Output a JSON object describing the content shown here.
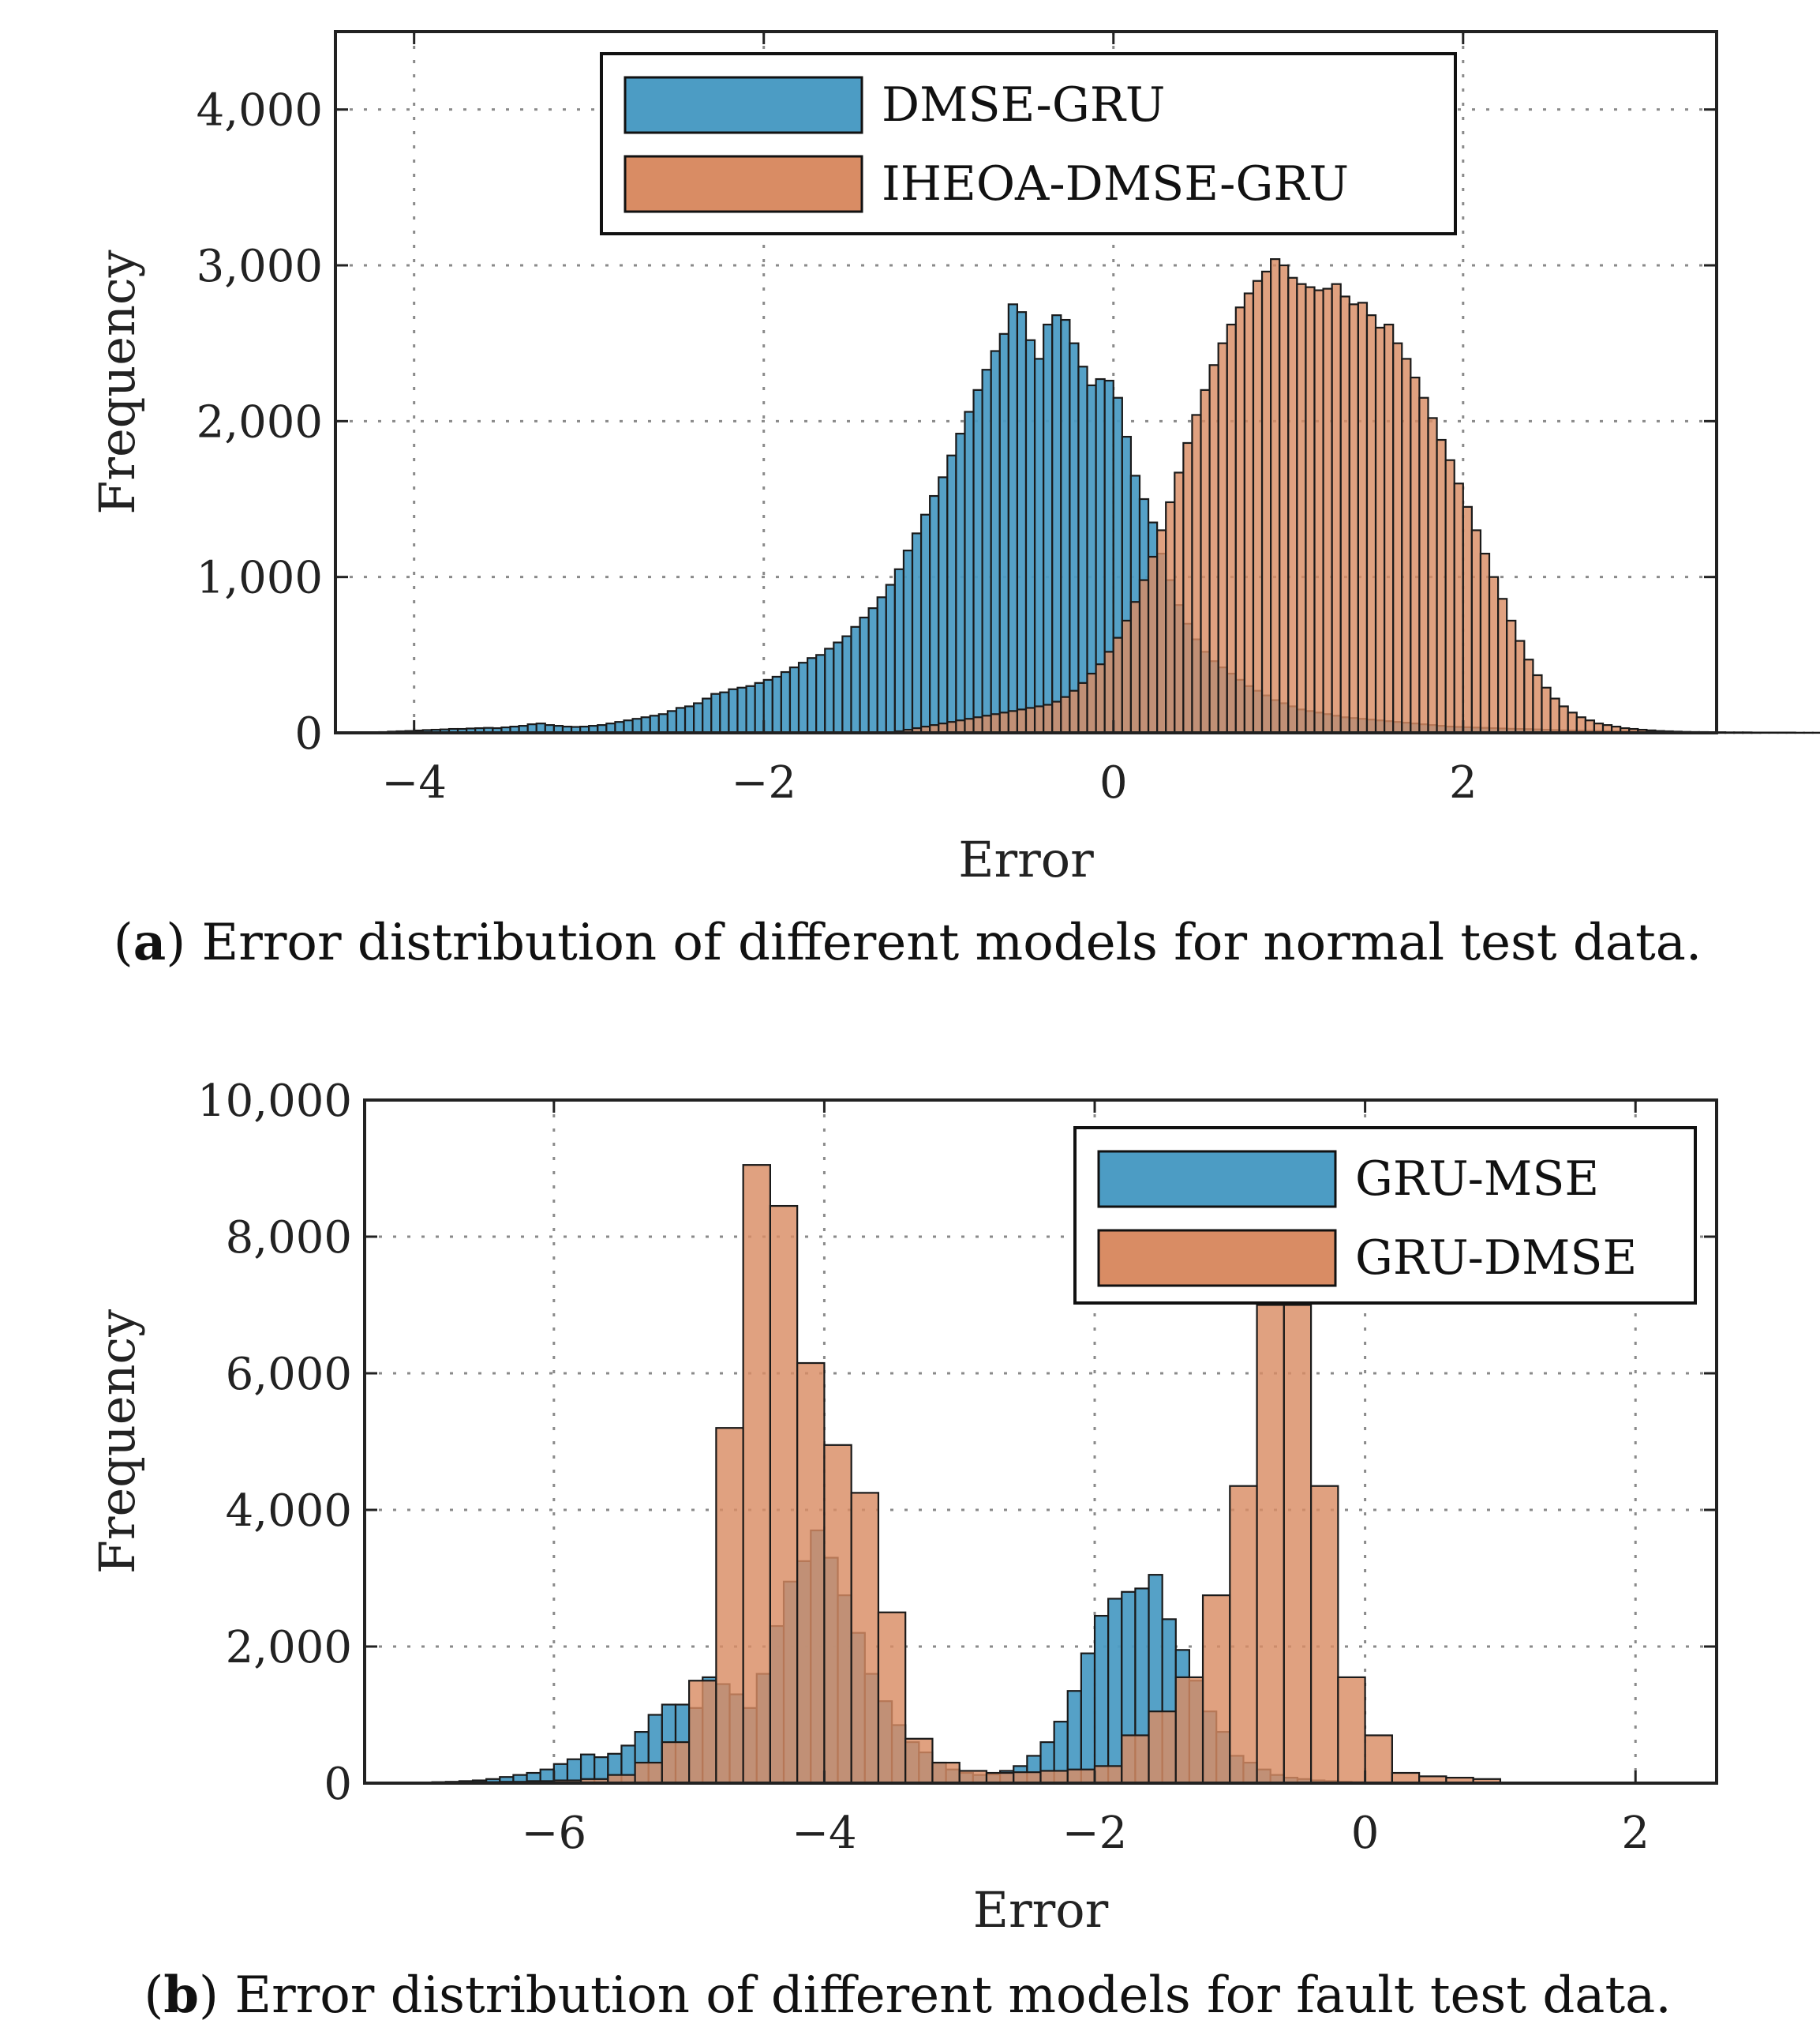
{
  "chart_data": [
    {
      "id": "a",
      "type": "bar",
      "subtype": "histogram",
      "title": "",
      "xlabel": "Error",
      "ylabel": "Frequency",
      "xlim": [
        -4.45,
        3.45
      ],
      "ylim": [
        0,
        4500
      ],
      "grid": true,
      "legend_position": "top-center",
      "xticks": [
        -4,
        -2,
        0,
        2
      ],
      "xtick_labels": [
        "−4",
        "−2",
        "0",
        "2"
      ],
      "yticks": [
        0,
        1000,
        2000,
        3000,
        4000
      ],
      "ytick_labels": [
        "0",
        "1,000",
        "2,000",
        "3,000",
        "4,000"
      ],
      "caption_label": "a",
      "caption_text": " Error distribution of different models for normal test data.",
      "series": [
        {
          "name": "DMSE-GRU",
          "color": "#4c9cc4",
          "bin_start": -4.2,
          "bin_width": 0.05,
          "values": [
            5,
            8,
            10,
            12,
            15,
            18,
            20,
            22,
            25,
            25,
            28,
            30,
            32,
            30,
            35,
            40,
            45,
            55,
            60,
            50,
            45,
            40,
            38,
            40,
            45,
            50,
            60,
            70,
            80,
            90,
            100,
            110,
            120,
            140,
            160,
            170,
            190,
            220,
            250,
            260,
            280,
            290,
            300,
            320,
            340,
            360,
            390,
            420,
            450,
            480,
            500,
            540,
            580,
            620,
            680,
            740,
            800,
            870,
            950,
            1050,
            1170,
            1280,
            1400,
            1520,
            1640,
            1780,
            1920,
            2060,
            2200,
            2330,
            2450,
            2560,
            2750,
            2700,
            2520,
            2400,
            2620,
            2680,
            2650,
            2500,
            2350,
            2230,
            2270,
            2260,
            2150,
            1900,
            1650,
            1500,
            1350,
            1150,
            980,
            820,
            700,
            600,
            520,
            460,
            420,
            380,
            340,
            300,
            270,
            240,
            210,
            190,
            170,
            150,
            140,
            130,
            120,
            110,
            100,
            95,
            90,
            85,
            80,
            75,
            70,
            65,
            60,
            55,
            50,
            45,
            40,
            38,
            36,
            34,
            32,
            30,
            28,
            26,
            25,
            24,
            22,
            20,
            18,
            16,
            15,
            14,
            13,
            12,
            11,
            10,
            10,
            9,
            8,
            8,
            7,
            6,
            6,
            5,
            5,
            5,
            4,
            4,
            3,
            3,
            3,
            2,
            2,
            2,
            2,
            2,
            1,
            1,
            1,
            1,
            1,
            1,
            1,
            1
          ]
        },
        {
          "name": "IHEOA-DMSE-GRU",
          "color": "#d98c64",
          "bin_start": -4.2,
          "bin_width": 0.05,
          "values": [
            0,
            0,
            0,
            0,
            0,
            0,
            0,
            0,
            0,
            0,
            0,
            0,
            0,
            0,
            0,
            0,
            0,
            0,
            0,
            0,
            0,
            0,
            0,
            0,
            0,
            0,
            0,
            0,
            0,
            0,
            0,
            0,
            0,
            0,
            0,
            0,
            0,
            0,
            0,
            0,
            0,
            0,
            0,
            0,
            0,
            0,
            0,
            0,
            0,
            0,
            0,
            0,
            0,
            0,
            0,
            0,
            0,
            0,
            0,
            10,
            20,
            30,
            40,
            50,
            60,
            70,
            80,
            90,
            100,
            110,
            120,
            130,
            140,
            150,
            160,
            170,
            180,
            200,
            230,
            270,
            320,
            380,
            440,
            520,
            610,
            720,
            840,
            980,
            1130,
            1300,
            1480,
            1670,
            1860,
            2040,
            2200,
            2360,
            2500,
            2620,
            2730,
            2820,
            2900,
            2960,
            3040,
            3000,
            2920,
            2880,
            2860,
            2840,
            2850,
            2880,
            2800,
            2750,
            2760,
            2680,
            2600,
            2620,
            2500,
            2400,
            2280,
            2150,
            2020,
            1880,
            1750,
            1600,
            1450,
            1300,
            1150,
            1000,
            860,
            720,
            590,
            470,
            370,
            290,
            220,
            170,
            130,
            100,
            80,
            60,
            50,
            40,
            30,
            25,
            20,
            16,
            12,
            10,
            8,
            6,
            5,
            4,
            3,
            2,
            2,
            1,
            1,
            1,
            0,
            0,
            0,
            0,
            0,
            0,
            0,
            0,
            0
          ]
        }
      ]
    },
    {
      "id": "b",
      "type": "bar",
      "subtype": "histogram",
      "title": "",
      "xlabel": "Error",
      "ylabel": "Frequency",
      "xlim": [
        -7.4,
        2.6
      ],
      "ylim": [
        0,
        10000
      ],
      "grid": true,
      "legend_position": "top-right",
      "xticks": [
        -6,
        -4,
        -2,
        0,
        2
      ],
      "xtick_labels": [
        "−6",
        "−4",
        "−2",
        "0",
        "2"
      ],
      "yticks": [
        0,
        2000,
        4000,
        6000,
        8000,
        10000
      ],
      "ytick_labels": [
        "0",
        "2,000",
        "4,000",
        "6,000",
        "8,000",
        "10,000"
      ],
      "caption_label": "b",
      "caption_text": " Error distribution of different models for fault test data.",
      "series": [
        {
          "name": "GRU-MSE",
          "color": "#4c9cc4",
          "bin_start": -7.0,
          "bin_width": 0.1,
          "values": [
            10,
            15,
            20,
            30,
            40,
            60,
            90,
            120,
            150,
            200,
            280,
            350,
            420,
            380,
            430,
            550,
            750,
            1000,
            1150,
            1150,
            1100,
            1550,
            1450,
            1300,
            1100,
            1600,
            2300,
            2950,
            3250,
            3700,
            3300,
            2750,
            2200,
            1600,
            1200,
            850,
            600,
            450,
            300,
            200,
            150,
            120,
            130,
            180,
            250,
            400,
            600,
            900,
            1350,
            1900,
            2450,
            2700,
            2800,
            2850,
            3050,
            2400,
            1950,
            1500,
            1050,
            750,
            400,
            300,
            200,
            120,
            80,
            60,
            40,
            30,
            20,
            15,
            10,
            8,
            6,
            5,
            4,
            3,
            2,
            2,
            1,
            1,
            1,
            0,
            0,
            0,
            0,
            0,
            0,
            0,
            0,
            0,
            0,
            0,
            0,
            0,
            0
          ]
        },
        {
          "name": "GRU-DMSE",
          "color": "#d98c64",
          "bin_start": -7.0,
          "bin_width": 0.2,
          "values": [
            5,
            10,
            15,
            20,
            30,
            40,
            60,
            120,
            300,
            600,
            1500,
            5200,
            9050,
            8450,
            6150,
            4950,
            4250,
            2500,
            650,
            300,
            180,
            150,
            160,
            180,
            200,
            250,
            700,
            1050,
            1550,
            2750,
            4350,
            7000,
            7000,
            4350,
            1550,
            700,
            150,
            100,
            80,
            60
          ]
        }
      ]
    }
  ]
}
